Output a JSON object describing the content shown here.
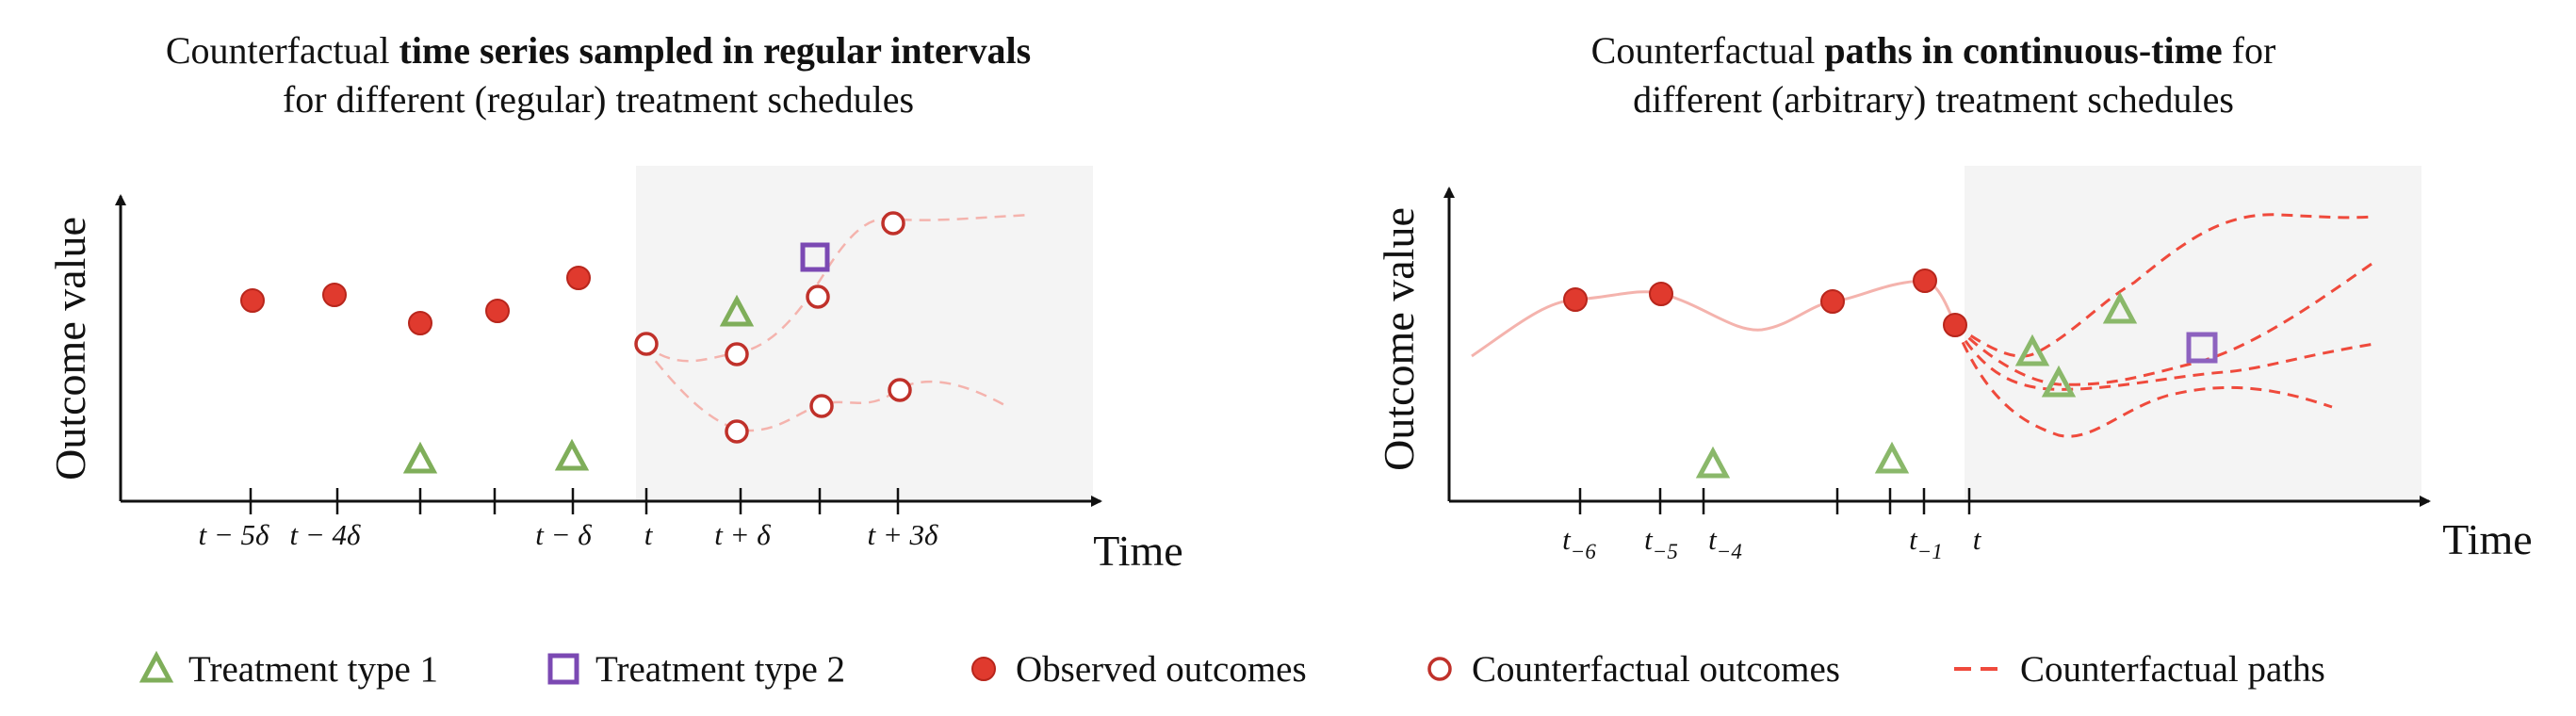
{
  "left_panel": {
    "title_prefix": "Counterfactual ",
    "title_bold": "time series sampled in regular intervals",
    "title_line2": "for different (regular) treatment schedules",
    "y_axis_label": "Outcome value",
    "x_axis_label": "Time",
    "tick_labels": [
      "t − 5δ",
      "t − 4δ",
      "t − δ",
      "t",
      "t + δ",
      "t + 3δ"
    ]
  },
  "right_panel": {
    "title_prefix": "Counterfactual ",
    "title_bold": "paths in continuous-time",
    "title_suffix": " for",
    "title_line2": "different (arbitrary) treatment schedules",
    "y_axis_label": "Outcome value",
    "x_axis_label": "Time",
    "tick_labels": [
      "t",
      "t"
    ],
    "tick_subscripts": [
      "−6",
      "−5",
      "−4",
      "−1"
    ]
  },
  "legend": {
    "treatment_type_1": "Treatment type 1",
    "treatment_type_2": "Treatment type 2",
    "observed_outcomes": "Observed outcomes",
    "counterfactual_outcomes": "Counterfactual outcomes",
    "counterfactual_paths": "Counterfactual paths"
  },
  "colors": {
    "observed": "#e03a2e",
    "observed_stroke": "#b8261c",
    "counterfactual_stroke": "#c0312a",
    "path_dashed": "#ef4a3c",
    "path_light": "#f4b3ad",
    "treatment1": "#7fae5a",
    "treatment2": "#7b49b3",
    "shade": "#f4f4f4",
    "axis": "#111111"
  }
}
